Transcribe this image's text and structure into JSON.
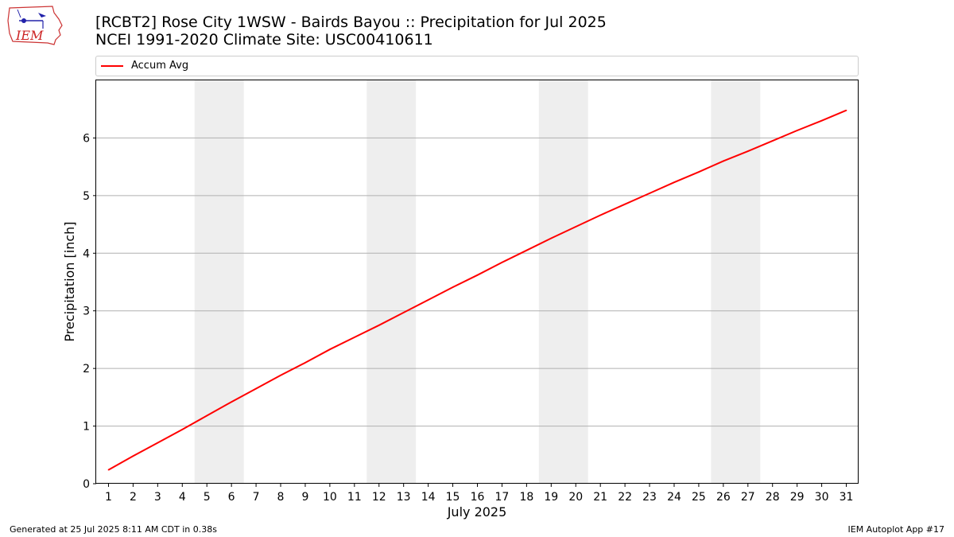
{
  "header": {
    "title_line1": "[RCBT2] Rose City 1WSW - Bairds Bayou :: Precipitation for Jul 2025",
    "title_line2": "NCEI 1991-2020 Climate Site: USC00410611"
  },
  "logo": {
    "text": "IEM",
    "icon": "iem-logo-icon"
  },
  "legend": {
    "entry": "Accum Avg"
  },
  "footer": {
    "left": "Generated at 25 Jul 2025 8:11 AM CDT in 0.38s",
    "right": "IEM Autoplot App #17"
  },
  "colors": {
    "line": "#ff0000",
    "weekend_band": "#eeeeee",
    "grid": "#b0b0b0"
  },
  "chart_data": {
    "type": "line",
    "title": "[RCBT2] Rose City 1WSW - Bairds Bayou :: Precipitation for Jul 2025",
    "subtitle": "NCEI 1991-2020 Climate Site: USC00410611",
    "xlabel": "July 2025",
    "ylabel": "Precipitation [inch]",
    "x": [
      1,
      2,
      3,
      4,
      5,
      6,
      7,
      8,
      9,
      10,
      11,
      12,
      13,
      14,
      15,
      16,
      17,
      18,
      19,
      20,
      21,
      22,
      23,
      24,
      25,
      26,
      27,
      28,
      29,
      30,
      31
    ],
    "xticks": [
      "1",
      "2",
      "3",
      "4",
      "5",
      "6",
      "7",
      "8",
      "9",
      "10",
      "11",
      "12",
      "13",
      "14",
      "15",
      "16",
      "17",
      "18",
      "19",
      "20",
      "21",
      "22",
      "23",
      "24",
      "25",
      "26",
      "27",
      "28",
      "29",
      "30",
      "31"
    ],
    "xlim": [
      0.5,
      31.5
    ],
    "ylim": [
      0,
      7
    ],
    "yticks": [
      0,
      1,
      2,
      3,
      4,
      5,
      6
    ],
    "grid": "horizontal",
    "legend": "top",
    "weekend_bands": [
      [
        5,
        6
      ],
      [
        12,
        13
      ],
      [
        19,
        20
      ],
      [
        26,
        27
      ]
    ],
    "series": [
      {
        "name": "Accum Avg",
        "color": "#ff0000",
        "values": [
          0.24,
          0.48,
          0.71,
          0.94,
          1.18,
          1.42,
          1.65,
          1.88,
          2.1,
          2.33,
          2.54,
          2.75,
          2.97,
          3.19,
          3.41,
          3.62,
          3.84,
          4.05,
          4.26,
          4.46,
          4.66,
          4.85,
          5.04,
          5.23,
          5.41,
          5.6,
          5.77,
          5.95,
          6.13,
          6.3,
          6.48
        ]
      }
    ]
  }
}
